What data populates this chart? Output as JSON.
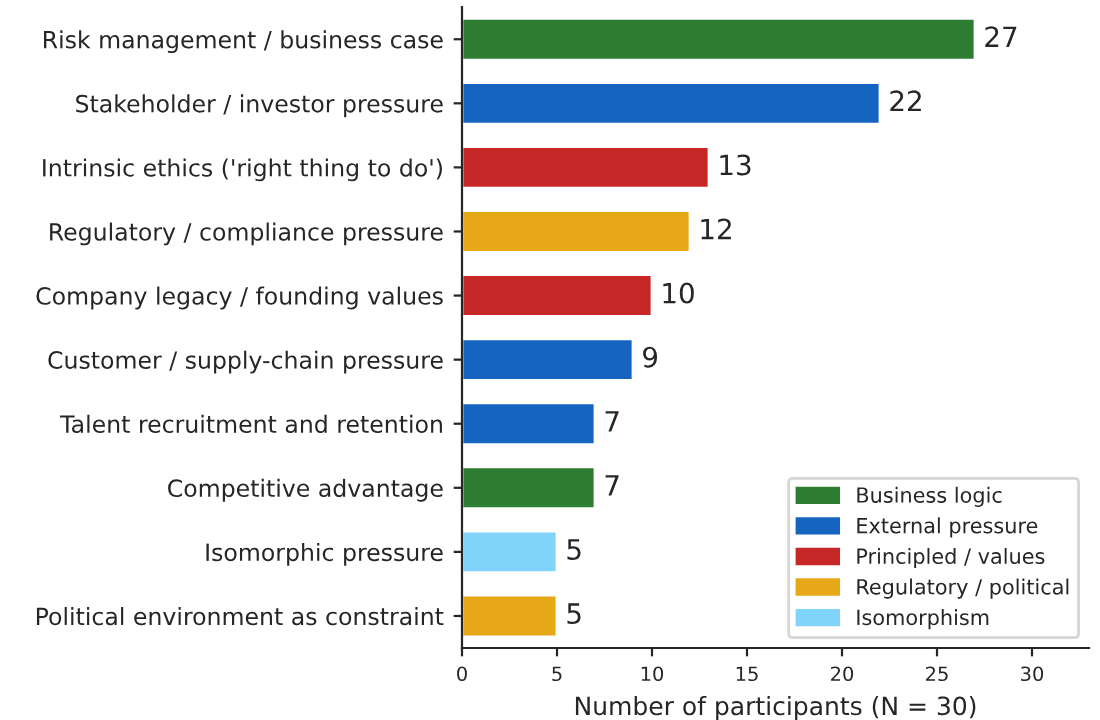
{
  "chart_data": {
    "type": "bar",
    "orientation": "horizontal",
    "xlabel": "Number of participants (N = 30)",
    "categories": [
      "Risk management / business case",
      "Stakeholder / investor pressure",
      "Intrinsic ethics ('right thing to do')",
      "Regulatory / compliance pressure",
      "Company legacy / founding values",
      "Customer / supply-chain pressure",
      "Talent recruitment and retention",
      "Competitive advantage",
      "Isomorphic pressure",
      "Political environment as constraint"
    ],
    "series": [
      {
        "name": "Business logic",
        "color": "#2e7d32",
        "values": [
          27,
          null,
          null,
          null,
          null,
          null,
          null,
          7,
          null,
          null
        ]
      },
      {
        "name": "External pressure",
        "color": "#1565c0",
        "values": [
          null,
          22,
          null,
          null,
          null,
          9,
          7,
          null,
          null,
          null
        ]
      },
      {
        "name": "Principled / values",
        "color": "#c62828",
        "values": [
          null,
          null,
          13,
          null,
          10,
          null,
          null,
          null,
          null,
          null
        ]
      },
      {
        "name": "Regulatory / political",
        "color": "#e6a817",
        "values": [
          null,
          null,
          null,
          12,
          null,
          null,
          null,
          null,
          null,
          5
        ]
      },
      {
        "name": "Isomorphism",
        "color": "#81d4fa",
        "values": [
          null,
          null,
          null,
          null,
          null,
          null,
          null,
          null,
          5,
          null
        ]
      }
    ],
    "xlim": [
      0,
      33
    ],
    "xticks": [
      0,
      5,
      10,
      15,
      20,
      25,
      30
    ],
    "data_labels": true,
    "legend": "bottom right",
    "grid": false
  }
}
